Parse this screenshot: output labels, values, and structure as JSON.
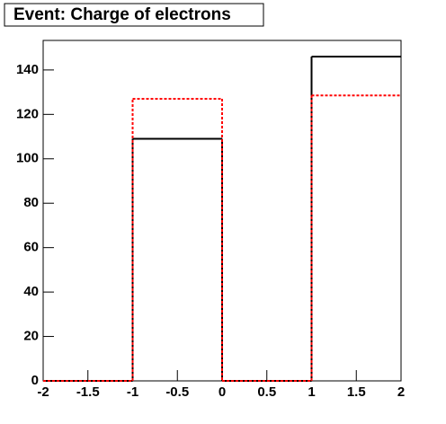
{
  "chart_data": {
    "type": "histogram",
    "title": "Event: Charge of electrons",
    "bins": [
      -2,
      -1,
      0,
      1,
      2
    ],
    "series": [
      {
        "color": "#000000",
        "line_style": "solid",
        "values": [
          0,
          109,
          0,
          146
        ]
      },
      {
        "color": "#ff0000",
        "line_style": "dashed",
        "values": [
          0,
          127,
          0,
          128.5
        ]
      }
    ],
    "xlim": [
      -2,
      2
    ],
    "xticks": [
      -2,
      -1.5,
      -1,
      -0.5,
      0,
      0.5,
      1,
      1.5,
      2
    ],
    "ylim": [
      0,
      153.3
    ],
    "yticks": [
      0,
      20,
      40,
      60,
      80,
      100,
      120,
      140
    ]
  }
}
